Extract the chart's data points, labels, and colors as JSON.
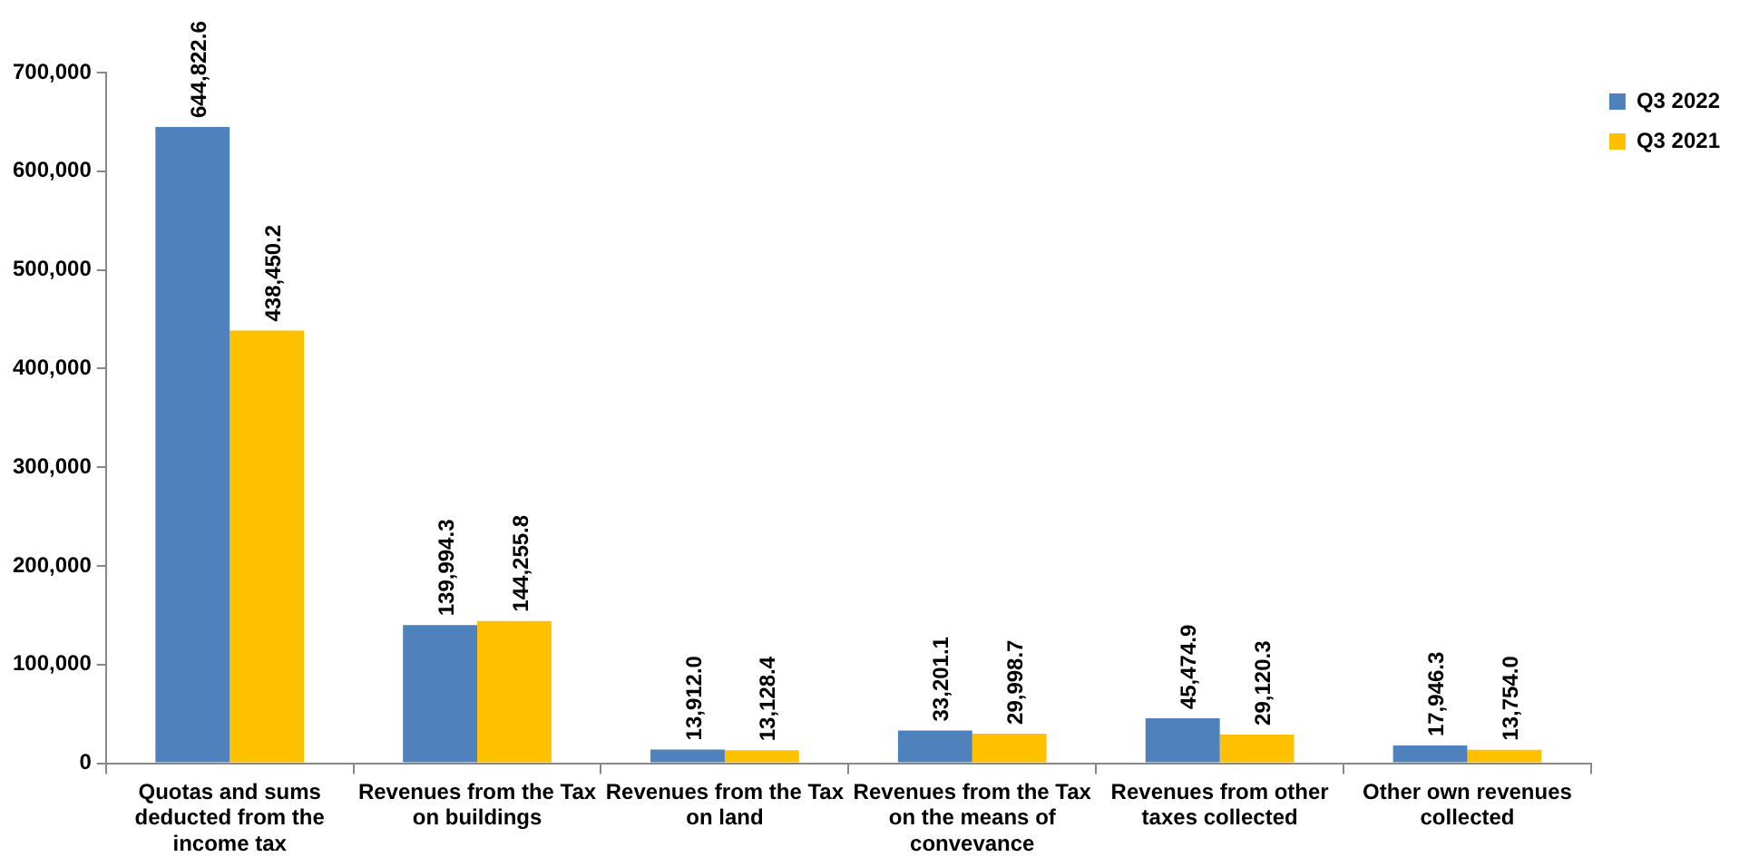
{
  "chart_data": {
    "type": "bar",
    "categories": [
      "Quotas and sums deducted from the income tax",
      "Revenues from the Tax on buildings",
      "Revenues from the Tax on land",
      "Revenues from the Tax on the means of convevance",
      "Revenues from other taxes collected",
      "Other own revenues collected"
    ],
    "series": [
      {
        "name": "Q3 2022",
        "color": "#4f81bd",
        "values": [
          644822.6,
          139994.3,
          13912.0,
          33201.1,
          45474.9,
          17946.3
        ],
        "value_labels": [
          "644,822.6",
          "139,994.3",
          "13,912.0",
          "33,201.1",
          "45,474.9",
          "17,946.3"
        ]
      },
      {
        "name": "Q3 2021",
        "color": "#ffc000",
        "values": [
          438450.2,
          144255.8,
          13128.4,
          29998.7,
          29120.3,
          13754.0
        ],
        "value_labels": [
          "438,450.2",
          "144,255.8",
          "13,128.4",
          "29,998.7",
          "29,120.3",
          "13,754.0"
        ]
      }
    ],
    "ylim": [
      0,
      700000
    ],
    "yticks": [
      {
        "value": 0,
        "label": "0"
      },
      {
        "value": 100000,
        "label": "100,000"
      },
      {
        "value": 200000,
        "label": "200,000"
      },
      {
        "value": 300000,
        "label": "300,000"
      },
      {
        "value": 400000,
        "label": "400,000"
      },
      {
        "value": 500000,
        "label": "500,000"
      },
      {
        "value": 600000,
        "label": "600,000"
      },
      {
        "value": 700000,
        "label": "700,000"
      }
    ],
    "grid": false,
    "legend": "top right"
  }
}
